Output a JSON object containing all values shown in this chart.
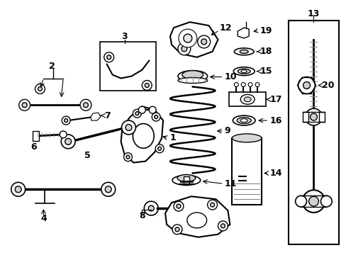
{
  "bg_color": "#ffffff",
  "line_color": "#000000",
  "fig_width": 4.89,
  "fig_height": 3.6,
  "dpi": 100,
  "label_fontsize": 8.5
}
